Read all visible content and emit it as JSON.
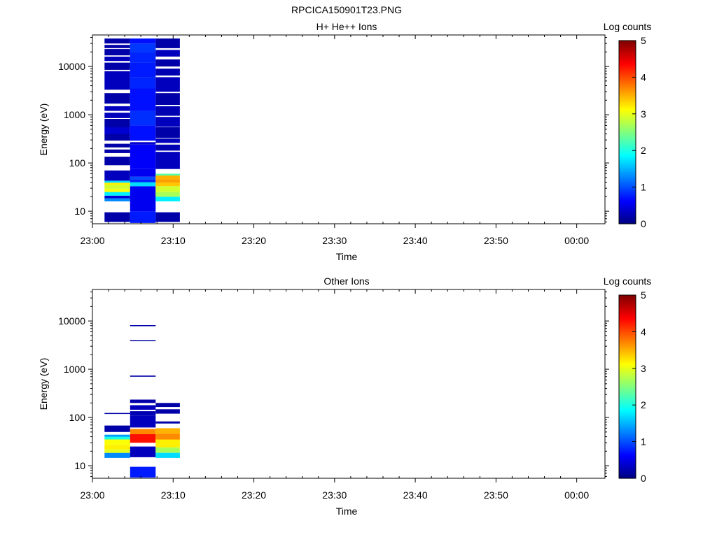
{
  "page_title": "RPCICA150901T23.PNG",
  "colorbar": {
    "label": "Log counts",
    "ticks": [
      "0",
      "1",
      "2",
      "3",
      "4",
      "5"
    ],
    "range": [
      0,
      5
    ],
    "colormap": "jet"
  },
  "chart_data": [
    {
      "type": "heatmap",
      "title": "H+ He++ Ions",
      "xlabel": "Time",
      "ylabel": "Energy (eV)",
      "x_ticks": [
        "23:00",
        "23:10",
        "23:20",
        "23:30",
        "23:40",
        "23:50",
        "00:00"
      ],
      "y_ticks": [
        "10",
        "100",
        "1000",
        "10000"
      ],
      "y_scale": "log",
      "ylim": [
        5.5,
        45000
      ],
      "xlim_minutes_after_23_00": [
        0,
        63.5
      ],
      "time_bins": [
        {
          "start": "23:01:30",
          "end": "23:04:40",
          "cells": [
            [
              6.0,
              9.5,
              0.2
            ],
            [
              16,
              18.5,
              1.3
            ],
            [
              18.5,
              21,
              0.4
            ],
            [
              21,
              25,
              1.8
            ],
            [
              25,
              29,
              3.1
            ],
            [
              29,
              35,
              2.9
            ],
            [
              35,
              39,
              3.2
            ],
            [
              39,
              43,
              1.7
            ],
            [
              43,
              70,
              0.3
            ],
            [
              90,
              135,
              0.2
            ],
            [
              160,
              190,
              0.2
            ],
            [
              210,
              250,
              0.2
            ],
            [
              290,
              400,
              0.2
            ],
            [
              400,
              550,
              0.4
            ],
            [
              550,
              820,
              0.2
            ],
            [
              850,
              1100,
              0.3
            ],
            [
              1200,
              1500,
              0.3
            ],
            [
              1700,
              2800,
              0.2
            ],
            [
              3300,
              8000,
              0.3
            ],
            [
              8500,
              12000,
              0.2
            ],
            [
              13000,
              16000,
              0.3
            ],
            [
              17000,
              23000,
              0.2
            ],
            [
              24000,
              28000,
              0.2
            ],
            [
              30000,
              38000,
              0.2
            ]
          ]
        },
        {
          "start": "23:04:40",
          "end": "23:07:50",
          "cells": [
            [
              5.7,
              10,
              0.75
            ],
            [
              10,
              33,
              0.55
            ],
            [
              33,
              40,
              1.7
            ],
            [
              40,
              46,
              0.8
            ],
            [
              46,
              52,
              1.0
            ],
            [
              52,
              75,
              0.55
            ],
            [
              75,
              240,
              0.6
            ],
            [
              240,
              270,
              0.4
            ],
            [
              290,
              600,
              0.7
            ],
            [
              600,
              1200,
              0.85
            ],
            [
              1200,
              3500,
              0.7
            ],
            [
              3500,
              6000,
              0.8
            ],
            [
              6000,
              12000,
              0.75
            ],
            [
              12000,
              20000,
              0.8
            ],
            [
              20000,
              30000,
              0.9
            ],
            [
              30000,
              38000,
              0.7
            ]
          ]
        },
        {
          "start": "23:07:50",
          "end": "23:10:50",
          "cells": [
            [
              6.0,
              9.5,
              0.2
            ],
            [
              16,
              20,
              1.8
            ],
            [
              20,
              25,
              2.7
            ],
            [
              25,
              33,
              2.9
            ],
            [
              33,
              39,
              3.4
            ],
            [
              39,
              46,
              3.6
            ],
            [
              46,
              55,
              3.5
            ],
            [
              55,
              60,
              2.3
            ],
            [
              75,
              170,
              0.3
            ],
            [
              180,
              240,
              0.25
            ],
            [
              260,
              320,
              0.3
            ],
            [
              330,
              550,
              0.2
            ],
            [
              560,
              900,
              0.3
            ],
            [
              950,
              1500,
              0.25
            ],
            [
              1600,
              2800,
              0.2
            ],
            [
              3000,
              6000,
              0.3
            ],
            [
              6500,
              9000,
              0.25
            ],
            [
              10000,
              14000,
              0.2
            ],
            [
              16000,
              22000,
              0.3
            ],
            [
              24000,
              38000,
              0.2
            ]
          ]
        }
      ]
    },
    {
      "type": "heatmap",
      "title": "Other Ions",
      "xlabel": "Time",
      "ylabel": "Energy (eV)",
      "x_ticks": [
        "23:00",
        "23:10",
        "23:20",
        "23:30",
        "23:40",
        "23:50",
        "00:00"
      ],
      "y_ticks": [
        "10",
        "100",
        "1000",
        "10000"
      ],
      "y_scale": "log",
      "ylim": [
        5.5,
        45000
      ],
      "xlim_minutes_after_23_00": [
        0,
        63.5
      ],
      "time_bins": [
        {
          "start": "23:01:30",
          "end": "23:04:40",
          "cells": [
            [
              14.5,
              18.5,
              1.3
            ],
            [
              18.5,
              22,
              3.0
            ],
            [
              22,
              27,
              3.2
            ],
            [
              27,
              35,
              3.1
            ],
            [
              35,
              40,
              2.0
            ],
            [
              40,
              44,
              1.4
            ],
            [
              50,
              68,
              0.2
            ],
            [
              118,
              124,
              0.2
            ]
          ]
        },
        {
          "start": "23:04:40",
          "end": "23:07:50",
          "cells": [
            [
              5.7,
              9.5,
              0.75
            ],
            [
              15,
              25,
              0.3
            ],
            [
              30,
              45,
              4.3
            ],
            [
              45,
              58,
              3.7
            ],
            [
              62,
              110,
              0.3
            ],
            [
              110,
              135,
              0.25
            ],
            [
              145,
              180,
              0.3
            ],
            [
              200,
              235,
              0.2
            ],
            [
              700,
              740,
              0.2
            ],
            [
              3800,
              4000,
              0.2
            ],
            [
              7800,
              8200,
              0.2
            ]
          ]
        },
        {
          "start": "23:07:50",
          "end": "23:10:50",
          "cells": [
            [
              14.5,
              18.5,
              1.7
            ],
            [
              18.5,
              24,
              2.7
            ],
            [
              24,
              35,
              3.2
            ],
            [
              35,
              46,
              3.7
            ],
            [
              46,
              60,
              3.5
            ],
            [
              75,
              83,
              0.2
            ],
            [
              120,
              148,
              0.2
            ],
            [
              165,
              200,
              0.2
            ]
          ]
        }
      ]
    }
  ]
}
